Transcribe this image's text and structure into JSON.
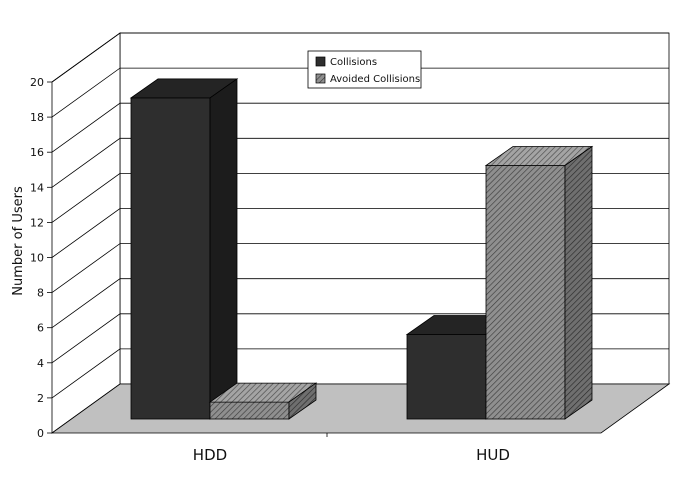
{
  "chart_data": {
    "type": "bar",
    "categories": [
      "HDD",
      "HUD"
    ],
    "series": [
      {
        "name": "Collisions",
        "values": [
          19,
          5
        ],
        "color": "#2b2b2b",
        "pattern": "solid"
      },
      {
        "name": "Avoided Collisions",
        "values": [
          1,
          15
        ],
        "color": "#8a8a8a",
        "pattern": "diagonal-hatch"
      }
    ],
    "title": "",
    "xlabel": "",
    "ylabel": "Number of Users",
    "ylim": [
      0,
      20
    ],
    "yticks": [
      "0",
      "2",
      "4",
      "6",
      "8",
      "10",
      "12",
      "14",
      "16",
      "18",
      "20"
    ],
    "grid": true,
    "legend": "top-center",
    "style": "3d"
  }
}
